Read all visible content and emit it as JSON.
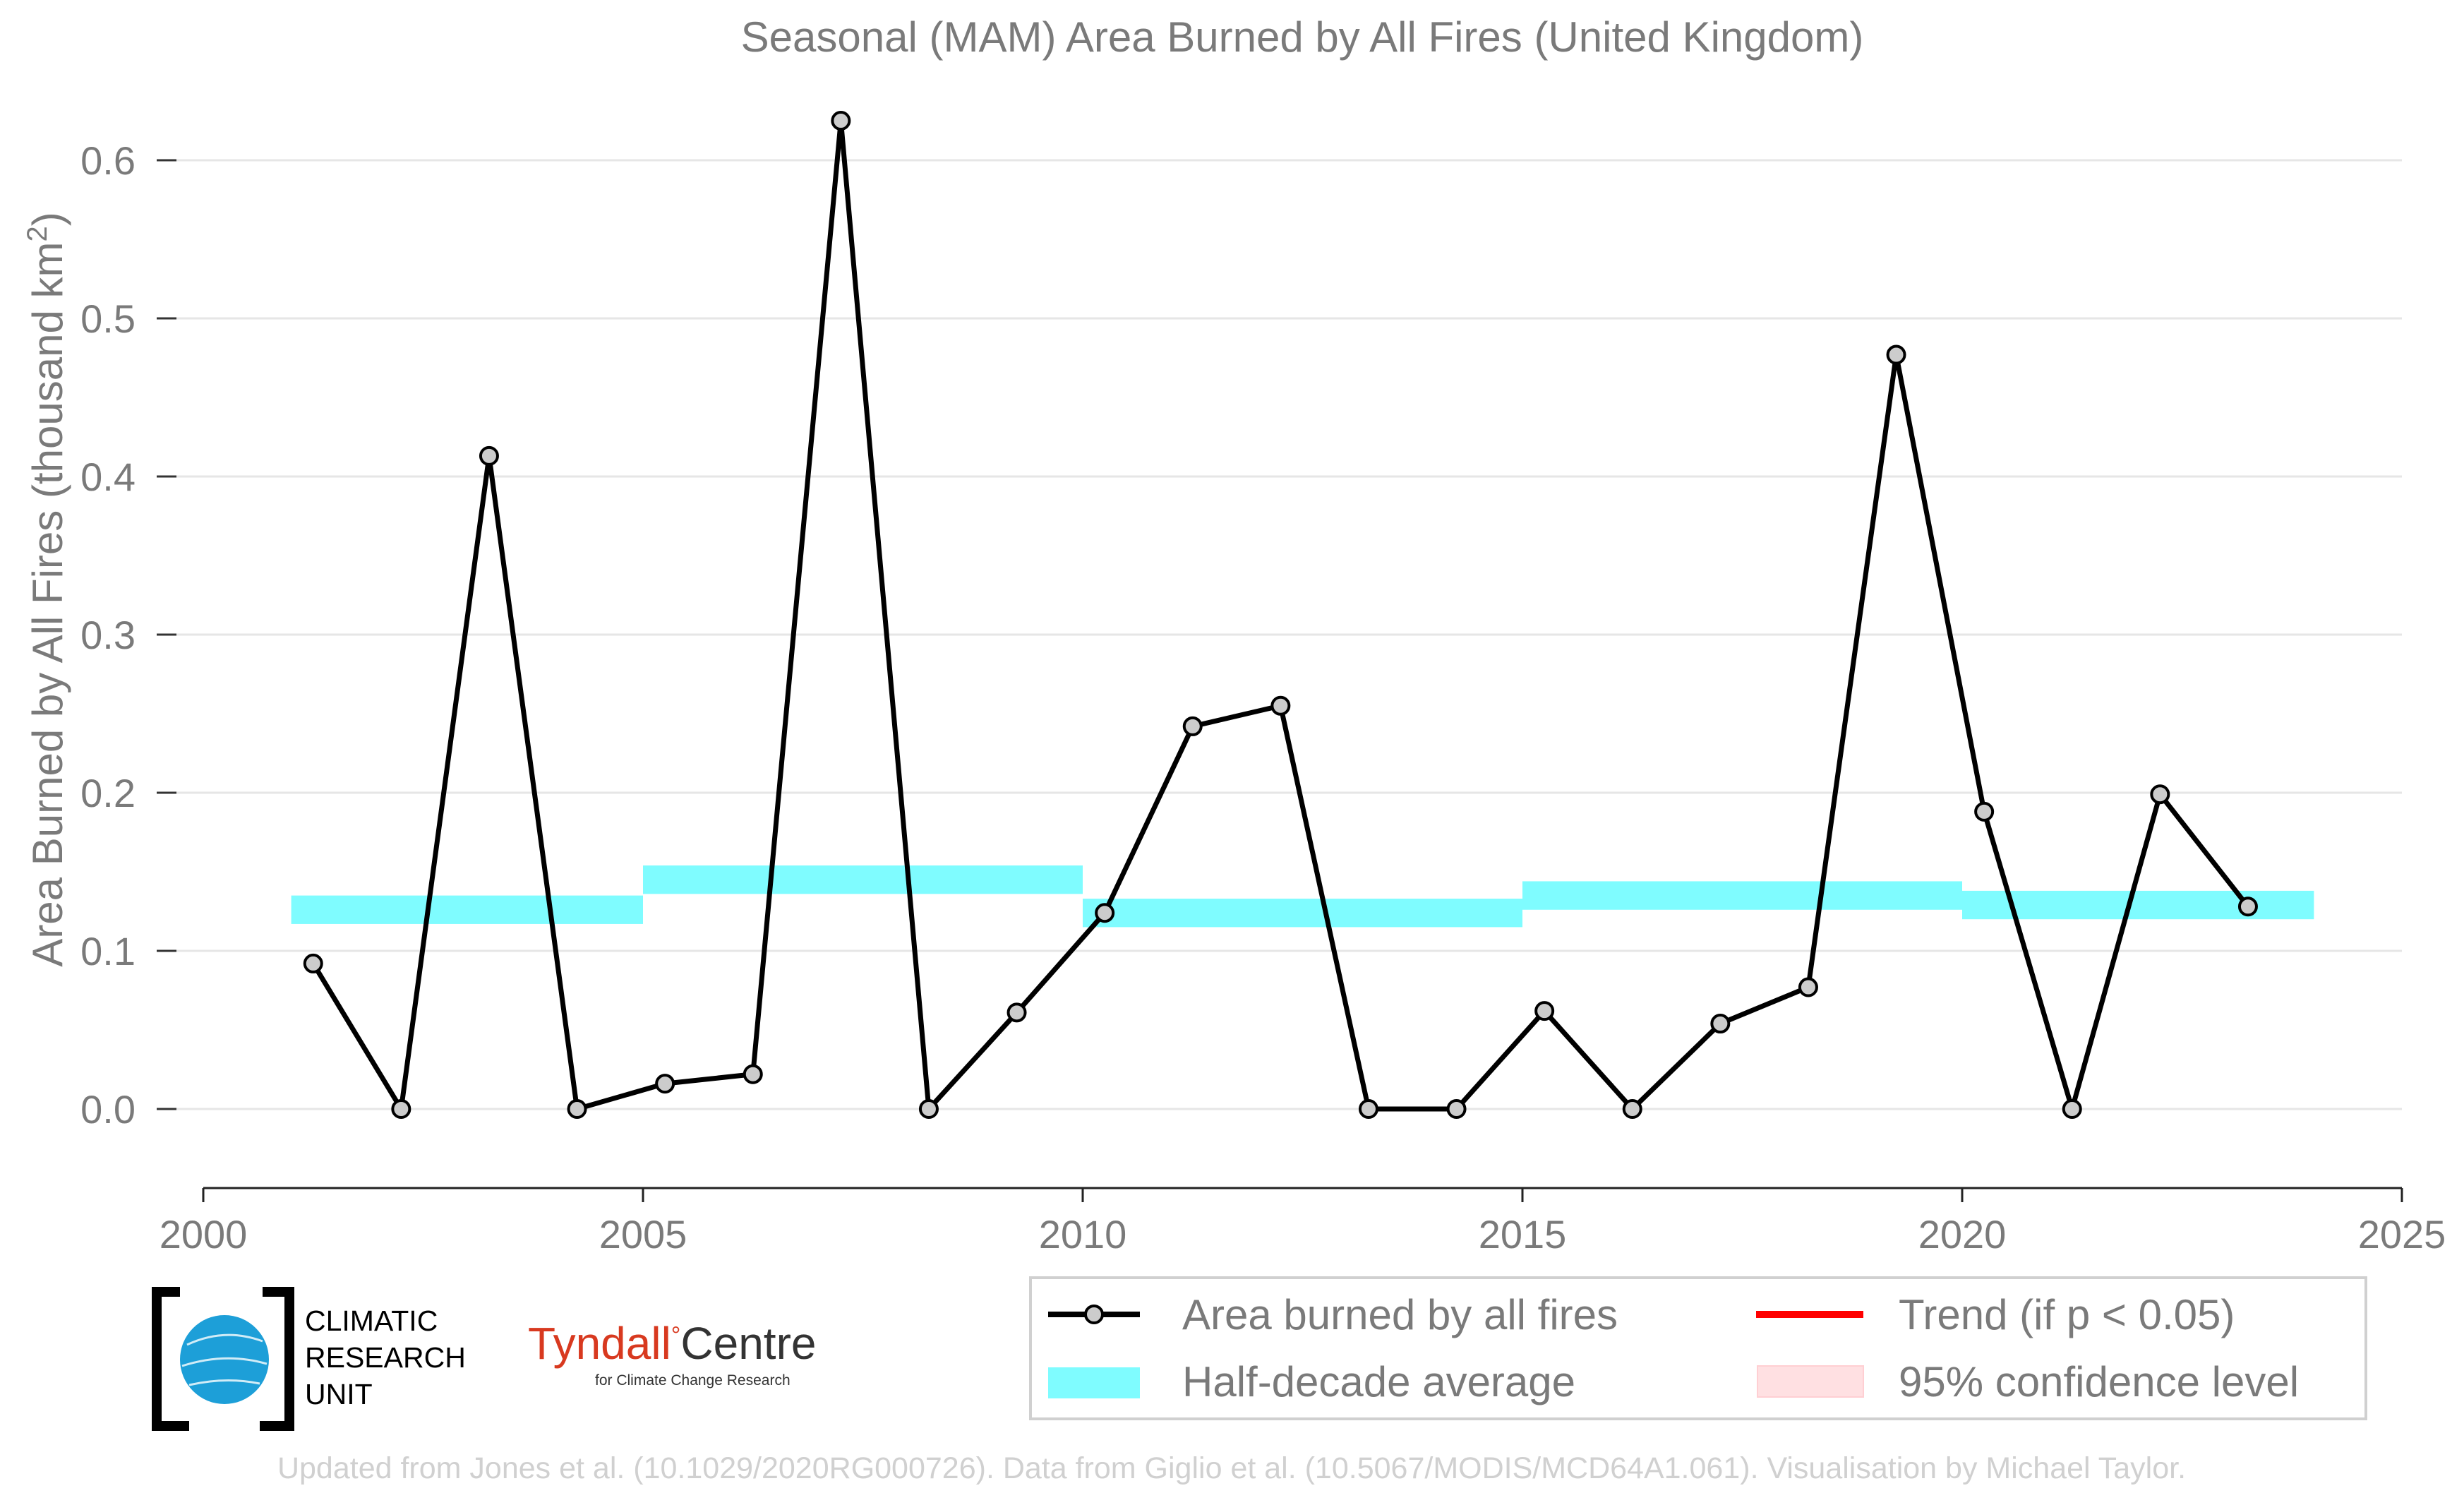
{
  "title": "Seasonal (MAM) Area Burned by All Fires (United Kingdom)",
  "colors": {
    "series": "#000000",
    "marker_fill": "#cccccc",
    "half_decade": "#7ffcff",
    "trend": "#ff0000",
    "confidence": "#ffe0e2",
    "grid": "#e6e6e6",
    "text": "#7a7a7a",
    "credit": "#d0d0d0"
  },
  "chart_data": {
    "type": "line",
    "title": "Seasonal (MAM) Area Burned by All Fires (United Kingdom)",
    "xlabel": "",
    "ylabel": "Area Burned by All Fires (thousand km²)",
    "ylabel_parts": {
      "prefix": "Area Burned by All Fires (thousand km",
      "sup": "2",
      "suffix": ")"
    },
    "xlim": [
      2000,
      2025
    ],
    "ylim": [
      -0.05,
      0.63
    ],
    "x_ticks": [
      "2000",
      "2005",
      "2010",
      "2015",
      "2020",
      "2025"
    ],
    "y_ticks": [
      "0.0",
      "0.1",
      "0.2",
      "0.3",
      "0.4",
      "0.5",
      "0.6"
    ],
    "grid": "horizontal",
    "legend_position": "bottom-right, outside plot",
    "series": [
      {
        "name": "Area burned by all fires",
        "x": [
          2001,
          2002,
          2003,
          2004,
          2005,
          2006,
          2007,
          2008,
          2009,
          2010,
          2011,
          2012,
          2013,
          2014,
          2015,
          2016,
          2017,
          2018,
          2019,
          2020,
          2021,
          2022,
          2023
        ],
        "y": [
          0.092,
          0.0,
          0.413,
          0.0,
          0.016,
          0.022,
          0.625,
          0.0,
          0.061,
          0.124,
          0.242,
          0.255,
          0.0,
          0.0,
          0.062,
          0.0,
          0.054,
          0.077,
          0.477,
          0.188,
          0.0,
          0.199,
          0.128
        ]
      }
    ],
    "half_decade_average": [
      {
        "x_start": 2001,
        "x_end": 2005,
        "y": 0.126,
        "y_low": 0.117,
        "y_high": 0.135
      },
      {
        "x_start": 2005,
        "x_end": 2010,
        "y": 0.145,
        "y_low": 0.136,
        "y_high": 0.154
      },
      {
        "x_start": 2010,
        "x_end": 2015,
        "y": 0.124,
        "y_low": 0.115,
        "y_high": 0.133
      },
      {
        "x_start": 2015,
        "x_end": 2020,
        "y": 0.135,
        "y_low": 0.126,
        "y_high": 0.144
      },
      {
        "x_start": 2020,
        "x_end": 2024,
        "y": 0.129,
        "y_low": 0.12,
        "y_high": 0.138
      }
    ],
    "legend": [
      {
        "label": "Area burned by all fires",
        "symbol": "line-marker"
      },
      {
        "label": "Trend (if p < 0.05)",
        "symbol": "line-red"
      },
      {
        "label": "Half-decade average",
        "symbol": "band-cyan"
      },
      {
        "label": "95% confidence level",
        "symbol": "band-pink"
      }
    ]
  },
  "logos": {
    "cru": {
      "lines": [
        "CLIMATIC",
        "RESEARCH",
        "UNIT"
      ]
    },
    "tyndall": {
      "name_left": "Tyndall",
      "degree": "°",
      "name_right": "Centre",
      "subtitle": "for Climate Change Research"
    }
  },
  "credit": "Updated from Jones et al. (10.1029/2020RG000726). Data from Giglio et al. (10.5067/MODIS/MCD64A1.061). Visualisation by Michael Taylor."
}
